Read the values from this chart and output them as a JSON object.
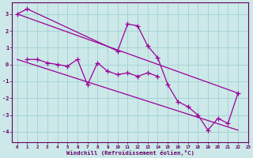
{
  "xlabel": "Windchill (Refroidissement éolien,°C)",
  "background_color": "#cce8e8",
  "grid_color": "#99cccc",
  "line_color": "#990099",
  "line1_x": [
    0,
    1,
    10,
    11,
    12,
    13,
    14,
    15,
    16,
    17,
    18,
    19,
    20,
    21,
    22
  ],
  "line1_y": [
    3.0,
    3.3,
    0.8,
    2.4,
    2.3,
    1.1,
    0.4,
    -1.2,
    -2.2,
    -2.5,
    -3.0,
    -3.9,
    -3.2,
    -3.5,
    -1.7
  ],
  "line2_x": [
    1,
    2,
    3,
    4,
    5,
    6,
    7,
    8,
    9,
    10,
    11,
    12,
    13,
    14
  ],
  "line2_y": [
    0.3,
    0.3,
    0.1,
    0.0,
    -0.1,
    0.3,
    -1.2,
    0.1,
    -0.4,
    -0.6,
    -0.5,
    -0.7,
    -0.5,
    -0.7
  ],
  "line3_x": [
    0,
    22
  ],
  "line3_y": [
    3.0,
    -1.7
  ],
  "line4_x": [
    0,
    22
  ],
  "line4_y": [
    0.3,
    -3.9
  ],
  "xlim": [
    -0.5,
    23
  ],
  "ylim": [
    -4.6,
    3.7
  ],
  "yticks": [
    3,
    2,
    1,
    0,
    -1,
    -2,
    -3,
    -4
  ],
  "xticks": [
    0,
    1,
    2,
    3,
    4,
    5,
    6,
    7,
    8,
    9,
    10,
    11,
    12,
    13,
    14,
    15,
    16,
    17,
    18,
    19,
    20,
    21,
    22,
    23
  ]
}
